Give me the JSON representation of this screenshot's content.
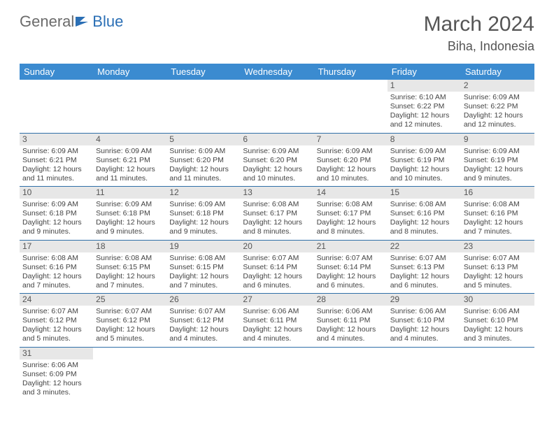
{
  "brand": {
    "part1": "General",
    "part2": "Blue"
  },
  "title": "March 2024",
  "location": "Biha, Indonesia",
  "colors": {
    "header_bg": "#3b8bd0",
    "header_text": "#ffffff",
    "daynum_bg": "#e7e7e7",
    "cell_border": "#2f6fa8",
    "text": "#444444",
    "brand_blue": "#2b6fb5",
    "brand_gray": "#6b6b6b"
  },
  "weekdays": [
    "Sunday",
    "Monday",
    "Tuesday",
    "Wednesday",
    "Thursday",
    "Friday",
    "Saturday"
  ],
  "grid": [
    [
      null,
      null,
      null,
      null,
      null,
      {
        "d": "1",
        "sr": "Sunrise: 6:10 AM",
        "ss": "Sunset: 6:22 PM",
        "dl1": "Daylight: 12 hours",
        "dl2": "and 12 minutes."
      },
      {
        "d": "2",
        "sr": "Sunrise: 6:09 AM",
        "ss": "Sunset: 6:22 PM",
        "dl1": "Daylight: 12 hours",
        "dl2": "and 12 minutes."
      }
    ],
    [
      {
        "d": "3",
        "sr": "Sunrise: 6:09 AM",
        "ss": "Sunset: 6:21 PM",
        "dl1": "Daylight: 12 hours",
        "dl2": "and 11 minutes."
      },
      {
        "d": "4",
        "sr": "Sunrise: 6:09 AM",
        "ss": "Sunset: 6:21 PM",
        "dl1": "Daylight: 12 hours",
        "dl2": "and 11 minutes."
      },
      {
        "d": "5",
        "sr": "Sunrise: 6:09 AM",
        "ss": "Sunset: 6:20 PM",
        "dl1": "Daylight: 12 hours",
        "dl2": "and 11 minutes."
      },
      {
        "d": "6",
        "sr": "Sunrise: 6:09 AM",
        "ss": "Sunset: 6:20 PM",
        "dl1": "Daylight: 12 hours",
        "dl2": "and 10 minutes."
      },
      {
        "d": "7",
        "sr": "Sunrise: 6:09 AM",
        "ss": "Sunset: 6:20 PM",
        "dl1": "Daylight: 12 hours",
        "dl2": "and 10 minutes."
      },
      {
        "d": "8",
        "sr": "Sunrise: 6:09 AM",
        "ss": "Sunset: 6:19 PM",
        "dl1": "Daylight: 12 hours",
        "dl2": "and 10 minutes."
      },
      {
        "d": "9",
        "sr": "Sunrise: 6:09 AM",
        "ss": "Sunset: 6:19 PM",
        "dl1": "Daylight: 12 hours",
        "dl2": "and 9 minutes."
      }
    ],
    [
      {
        "d": "10",
        "sr": "Sunrise: 6:09 AM",
        "ss": "Sunset: 6:18 PM",
        "dl1": "Daylight: 12 hours",
        "dl2": "and 9 minutes."
      },
      {
        "d": "11",
        "sr": "Sunrise: 6:09 AM",
        "ss": "Sunset: 6:18 PM",
        "dl1": "Daylight: 12 hours",
        "dl2": "and 9 minutes."
      },
      {
        "d": "12",
        "sr": "Sunrise: 6:09 AM",
        "ss": "Sunset: 6:18 PM",
        "dl1": "Daylight: 12 hours",
        "dl2": "and 9 minutes."
      },
      {
        "d": "13",
        "sr": "Sunrise: 6:08 AM",
        "ss": "Sunset: 6:17 PM",
        "dl1": "Daylight: 12 hours",
        "dl2": "and 8 minutes."
      },
      {
        "d": "14",
        "sr": "Sunrise: 6:08 AM",
        "ss": "Sunset: 6:17 PM",
        "dl1": "Daylight: 12 hours",
        "dl2": "and 8 minutes."
      },
      {
        "d": "15",
        "sr": "Sunrise: 6:08 AM",
        "ss": "Sunset: 6:16 PM",
        "dl1": "Daylight: 12 hours",
        "dl2": "and 8 minutes."
      },
      {
        "d": "16",
        "sr": "Sunrise: 6:08 AM",
        "ss": "Sunset: 6:16 PM",
        "dl1": "Daylight: 12 hours",
        "dl2": "and 7 minutes."
      }
    ],
    [
      {
        "d": "17",
        "sr": "Sunrise: 6:08 AM",
        "ss": "Sunset: 6:16 PM",
        "dl1": "Daylight: 12 hours",
        "dl2": "and 7 minutes."
      },
      {
        "d": "18",
        "sr": "Sunrise: 6:08 AM",
        "ss": "Sunset: 6:15 PM",
        "dl1": "Daylight: 12 hours",
        "dl2": "and 7 minutes."
      },
      {
        "d": "19",
        "sr": "Sunrise: 6:08 AM",
        "ss": "Sunset: 6:15 PM",
        "dl1": "Daylight: 12 hours",
        "dl2": "and 7 minutes."
      },
      {
        "d": "20",
        "sr": "Sunrise: 6:07 AM",
        "ss": "Sunset: 6:14 PM",
        "dl1": "Daylight: 12 hours",
        "dl2": "and 6 minutes."
      },
      {
        "d": "21",
        "sr": "Sunrise: 6:07 AM",
        "ss": "Sunset: 6:14 PM",
        "dl1": "Daylight: 12 hours",
        "dl2": "and 6 minutes."
      },
      {
        "d": "22",
        "sr": "Sunrise: 6:07 AM",
        "ss": "Sunset: 6:13 PM",
        "dl1": "Daylight: 12 hours",
        "dl2": "and 6 minutes."
      },
      {
        "d": "23",
        "sr": "Sunrise: 6:07 AM",
        "ss": "Sunset: 6:13 PM",
        "dl1": "Daylight: 12 hours",
        "dl2": "and 5 minutes."
      }
    ],
    [
      {
        "d": "24",
        "sr": "Sunrise: 6:07 AM",
        "ss": "Sunset: 6:12 PM",
        "dl1": "Daylight: 12 hours",
        "dl2": "and 5 minutes."
      },
      {
        "d": "25",
        "sr": "Sunrise: 6:07 AM",
        "ss": "Sunset: 6:12 PM",
        "dl1": "Daylight: 12 hours",
        "dl2": "and 5 minutes."
      },
      {
        "d": "26",
        "sr": "Sunrise: 6:07 AM",
        "ss": "Sunset: 6:12 PM",
        "dl1": "Daylight: 12 hours",
        "dl2": "and 4 minutes."
      },
      {
        "d": "27",
        "sr": "Sunrise: 6:06 AM",
        "ss": "Sunset: 6:11 PM",
        "dl1": "Daylight: 12 hours",
        "dl2": "and 4 minutes."
      },
      {
        "d": "28",
        "sr": "Sunrise: 6:06 AM",
        "ss": "Sunset: 6:11 PM",
        "dl1": "Daylight: 12 hours",
        "dl2": "and 4 minutes."
      },
      {
        "d": "29",
        "sr": "Sunrise: 6:06 AM",
        "ss": "Sunset: 6:10 PM",
        "dl1": "Daylight: 12 hours",
        "dl2": "and 4 minutes."
      },
      {
        "d": "30",
        "sr": "Sunrise: 6:06 AM",
        "ss": "Sunset: 6:10 PM",
        "dl1": "Daylight: 12 hours",
        "dl2": "and 3 minutes."
      }
    ],
    [
      {
        "d": "31",
        "sr": "Sunrise: 6:06 AM",
        "ss": "Sunset: 6:09 PM",
        "dl1": "Daylight: 12 hours",
        "dl2": "and 3 minutes."
      },
      null,
      null,
      null,
      null,
      null,
      null
    ]
  ]
}
